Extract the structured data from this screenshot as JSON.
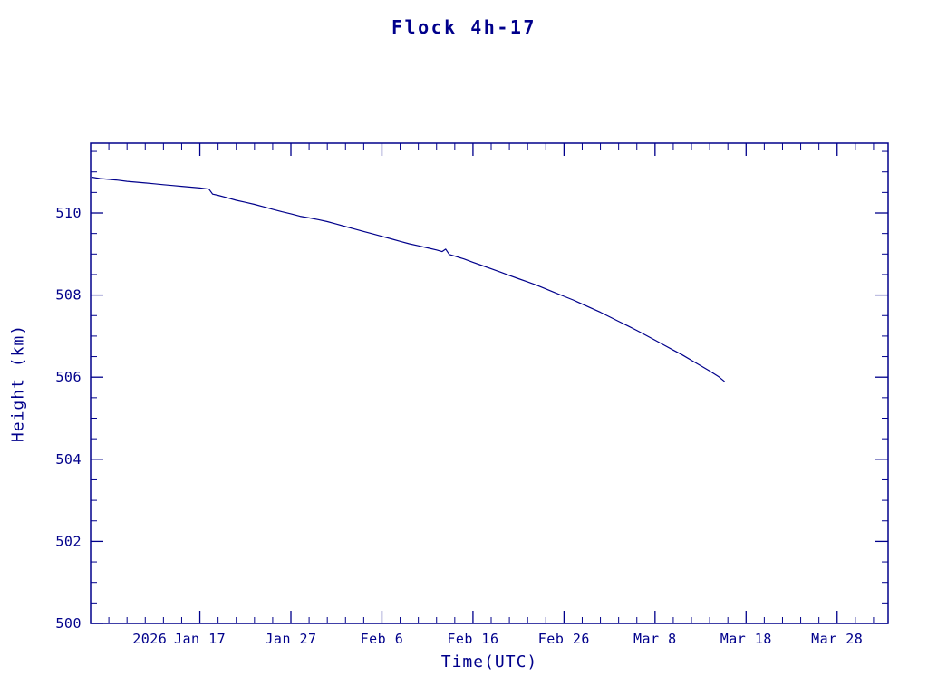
{
  "chart_data": {
    "type": "line",
    "title": "Flock 4h-17",
    "xlabel": "Time(UTC)",
    "ylabel": "Height (km)",
    "accent_color": "#00008B",
    "grid": false,
    "legend": "none",
    "xlim_days_of_year_2026": [
      5.0,
      92.6
    ],
    "ylim": [
      500,
      511.7
    ],
    "x_ticks": [
      {
        "day": 17,
        "label": "Jan 17",
        "prefix": "2026"
      },
      {
        "day": 27,
        "label": "Jan 27"
      },
      {
        "day": 37,
        "label": "Feb 6"
      },
      {
        "day": 47,
        "label": "Feb 16"
      },
      {
        "day": 57,
        "label": "Feb 26"
      },
      {
        "day": 67,
        "label": "Mar 8"
      },
      {
        "day": 77,
        "label": "Mar 18"
      },
      {
        "day": 87,
        "label": "Mar 28"
      }
    ],
    "x_minor_step_days": 2,
    "y_ticks": [
      {
        "value": 500,
        "label": "500"
      },
      {
        "value": 502,
        "label": "502"
      },
      {
        "value": 504,
        "label": "504"
      },
      {
        "value": 506,
        "label": "506"
      },
      {
        "value": 508,
        "label": "508"
      },
      {
        "value": 510,
        "label": "510"
      }
    ],
    "y_minor_step": 0.5,
    "series": [
      {
        "name": "orbital-height",
        "color": "#00008B",
        "points": [
          [
            5.2,
            510.87
          ],
          [
            6,
            510.84
          ],
          [
            7,
            510.82
          ],
          [
            8,
            510.8
          ],
          [
            9,
            510.77
          ],
          [
            10,
            510.75
          ],
          [
            11,
            510.73
          ],
          [
            12,
            510.71
          ],
          [
            13,
            510.69
          ],
          [
            14,
            510.67
          ],
          [
            15,
            510.65
          ],
          [
            16,
            510.63
          ],
          [
            17,
            510.61
          ],
          [
            18,
            510.58
          ],
          [
            18.4,
            510.46
          ],
          [
            19,
            510.43
          ],
          [
            20,
            510.37
          ],
          [
            21,
            510.31
          ],
          [
            22,
            510.26
          ],
          [
            23,
            510.21
          ],
          [
            24,
            510.15
          ],
          [
            25,
            510.09
          ],
          [
            26,
            510.03
          ],
          [
            27,
            509.98
          ],
          [
            28,
            509.92
          ],
          [
            29,
            509.88
          ],
          [
            30,
            509.84
          ],
          [
            31,
            509.79
          ],
          [
            32,
            509.73
          ],
          [
            33,
            509.67
          ],
          [
            34,
            509.61
          ],
          [
            35,
            509.55
          ],
          [
            36,
            509.49
          ],
          [
            37,
            509.43
          ],
          [
            38,
            509.37
          ],
          [
            39,
            509.31
          ],
          [
            40,
            509.25
          ],
          [
            41,
            509.2
          ],
          [
            42,
            509.15
          ],
          [
            43,
            509.1
          ],
          [
            43.6,
            509.06
          ],
          [
            44,
            509.12
          ],
          [
            44.4,
            508.99
          ],
          [
            45,
            508.95
          ],
          [
            46,
            508.88
          ],
          [
            47,
            508.8
          ],
          [
            48,
            508.72
          ],
          [
            49,
            508.64
          ],
          [
            50,
            508.56
          ],
          [
            51,
            508.48
          ],
          [
            52,
            508.4
          ],
          [
            53,
            508.32
          ],
          [
            54,
            508.24
          ],
          [
            55,
            508.15
          ],
          [
            56,
            508.06
          ],
          [
            57,
            507.97
          ],
          [
            58,
            507.88
          ],
          [
            59,
            507.78
          ],
          [
            60,
            507.68
          ],
          [
            61,
            507.58
          ],
          [
            62,
            507.47
          ],
          [
            63,
            507.36
          ],
          [
            64,
            507.25
          ],
          [
            65,
            507.14
          ],
          [
            66,
            507.02
          ],
          [
            67,
            506.9
          ],
          [
            68,
            506.78
          ],
          [
            69,
            506.66
          ],
          [
            70,
            506.54
          ],
          [
            71,
            506.41
          ],
          [
            72,
            506.28
          ],
          [
            73,
            506.15
          ],
          [
            74,
            506.01
          ],
          [
            74.6,
            505.9
          ]
        ]
      }
    ]
  }
}
